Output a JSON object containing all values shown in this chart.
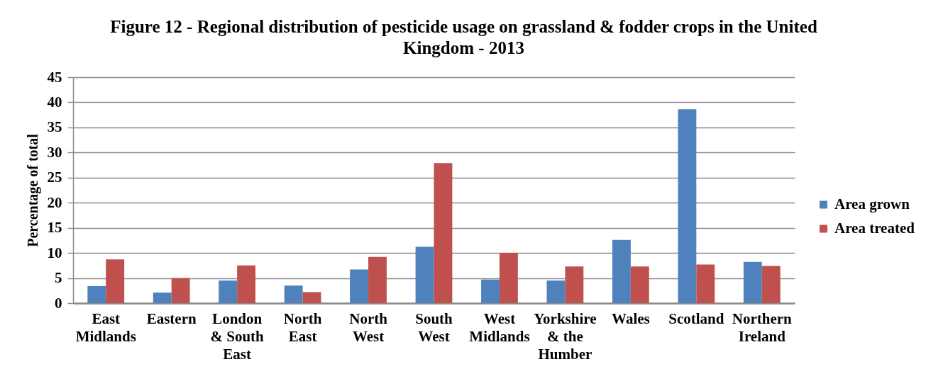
{
  "chart_data": {
    "type": "bar",
    "title": "Figure 12 - Regional distribution of pesticide usage on grassland & fodder crops in the United Kingdom - 2013",
    "ylabel": "Percentage of total",
    "categories": [
      "East Midlands",
      "Eastern",
      "London & South East",
      "North East",
      "North West",
      "South West",
      "West Midlands",
      "Yorkshire & the Humber",
      "Wales",
      "Scotland",
      "Northern Ireland"
    ],
    "series": [
      {
        "name": "Area grown",
        "color": "#4f81bd",
        "values": [
          3.4,
          2.1,
          4.5,
          3.5,
          6.7,
          11.2,
          4.7,
          4.5,
          12.6,
          38.6,
          8.2
        ]
      },
      {
        "name": "Area treated",
        "color": "#c0504d",
        "values": [
          8.7,
          5.0,
          7.5,
          2.2,
          9.2,
          27.9,
          10.0,
          7.3,
          7.3,
          7.7,
          7.4
        ]
      }
    ],
    "ylim": [
      0,
      45
    ],
    "yticks": [
      0,
      5,
      10,
      15,
      20,
      25,
      30,
      35,
      40,
      45
    ],
    "grid": "y",
    "legend": "right"
  }
}
